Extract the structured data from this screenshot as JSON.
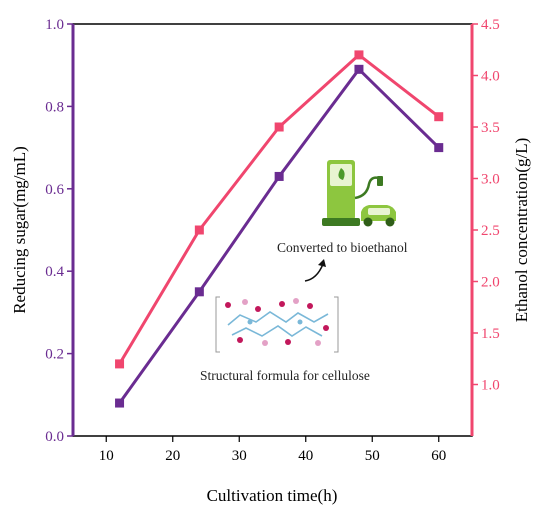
{
  "chart_data": {
    "type": "line",
    "x": [
      12,
      24,
      36,
      48,
      60
    ],
    "xlabel": "Cultivation time(h)",
    "xlim": [
      5,
      65
    ],
    "xticks": [
      "10",
      "20",
      "30",
      "40",
      "50",
      "60"
    ],
    "grid": false,
    "series": [
      {
        "axis": "left",
        "color": "#6a2c91",
        "marker": "square",
        "values": [
          0.08,
          0.35,
          0.63,
          0.89,
          0.7
        ]
      },
      {
        "axis": "right",
        "color": "#f0466e",
        "marker": "square",
        "values": [
          1.2,
          2.5,
          3.5,
          4.2,
          3.6
        ]
      }
    ],
    "ylabel_left": "Reducing sugar(mg/mL)",
    "ylim_left": [
      0,
      1.0
    ],
    "yticks_left": [
      "0.0",
      "0.2",
      "0.4",
      "0.6",
      "0.8",
      "1.0"
    ],
    "ylabel_right": "Ethanol concentration(g/L)",
    "ylim_right": [
      0.5,
      4.5
    ],
    "yticks_right": [
      "1.0",
      "1.5",
      "2.0",
      "2.5",
      "3.0",
      "3.5",
      "4.0",
      "4.5"
    ],
    "annotations": {
      "converted": "Converted to bioethanol",
      "structural": "Structural formula for cellulose"
    },
    "colors": {
      "left_axis": "#6a2c91",
      "right_axis": "#f0466e",
      "frame": "#000000"
    },
    "icons": [
      "ev-charging-station-icon",
      "car-icon",
      "cellulose-structure-icon",
      "curved-arrow-icon"
    ]
  }
}
